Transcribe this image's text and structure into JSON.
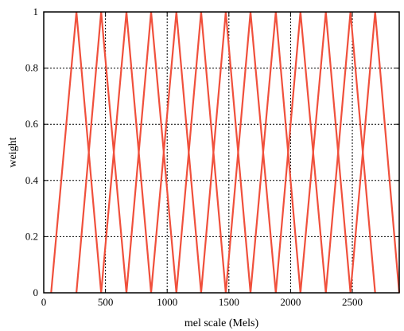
{
  "chart_data": {
    "type": "line",
    "title": "",
    "xlabel": "mel scale (Mels)",
    "ylabel": "weight",
    "xlim": [
      0,
      2880
    ],
    "ylim": [
      0,
      1
    ],
    "xticks": [
      0,
      500,
      1000,
      1500,
      2000,
      2500
    ],
    "yticks": [
      0,
      0.2,
      0.4,
      0.6,
      0.8,
      1
    ],
    "xtick_labels": [
      "0",
      "500",
      "1000",
      "1500",
      "2000",
      "2500"
    ],
    "ytick_labels": [
      "0",
      "0.2",
      "0.4",
      "0.6",
      "0.8",
      "1"
    ],
    "grid": "dotted",
    "legend": "none",
    "line_color": "#f0503c",
    "series": [
      {
        "x": [
          60,
          265,
          465
        ],
        "y": [
          0,
          1,
          0
        ]
      },
      {
        "x": [
          265,
          465,
          670
        ],
        "y": [
          0,
          1,
          0
        ]
      },
      {
        "x": [
          465,
          670,
          870
        ],
        "y": [
          0,
          1,
          0
        ]
      },
      {
        "x": [
          670,
          870,
          1075
        ],
        "y": [
          0,
          1,
          0
        ]
      },
      {
        "x": [
          870,
          1075,
          1275
        ],
        "y": [
          0,
          1,
          0
        ]
      },
      {
        "x": [
          1075,
          1275,
          1475
        ],
        "y": [
          0,
          1,
          0
        ]
      },
      {
        "x": [
          1275,
          1475,
          1675
        ],
        "y": [
          0,
          1,
          0
        ]
      },
      {
        "x": [
          1475,
          1675,
          1880
        ],
        "y": [
          0,
          1,
          0
        ]
      },
      {
        "x": [
          1675,
          1880,
          2080
        ],
        "y": [
          0,
          1,
          0
        ]
      },
      {
        "x": [
          1880,
          2080,
          2285
        ],
        "y": [
          0,
          1,
          0
        ]
      },
      {
        "x": [
          2080,
          2285,
          2485
        ],
        "y": [
          0,
          1,
          0
        ]
      },
      {
        "x": [
          2285,
          2485,
          2685
        ],
        "y": [
          0,
          1,
          0
        ]
      },
      {
        "x": [
          2485,
          2685,
          2880
        ],
        "y": [
          0,
          1,
          0
        ]
      }
    ]
  }
}
